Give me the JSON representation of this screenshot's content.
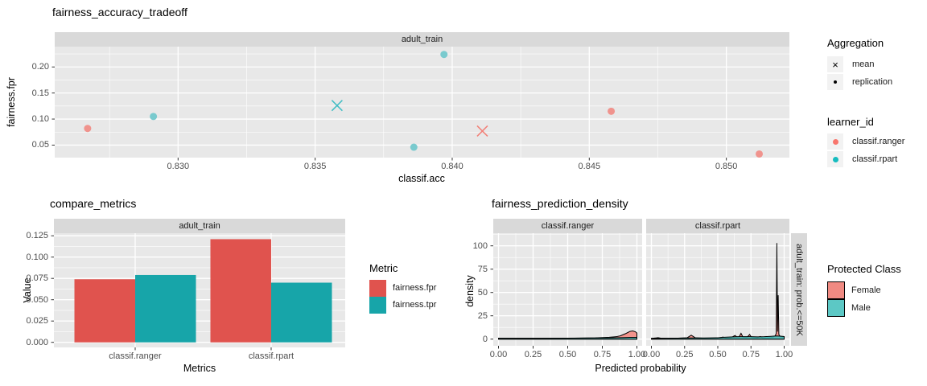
{
  "theme": {
    "panel_bg": "#E8E8E8",
    "strip_bg": "#D9D9D9",
    "grid_color": "#FFFFFF",
    "tick_text_color": "#4D4D4D",
    "text_color": "#000000"
  },
  "chart_data": [
    {
      "id": "fairness_accuracy_tradeoff",
      "type": "scatter",
      "title": "fairness_accuracy_tradeoff",
      "facet_label": "adult_train",
      "xlabel": "classif.acc",
      "ylabel": "fairness.fpr",
      "xlim": [
        0.8255,
        0.8523
      ],
      "ylim": [
        0.026,
        0.239
      ],
      "xticks": [
        {
          "v": 0.83,
          "label": "0.830"
        },
        {
          "v": 0.835,
          "label": "0.835"
        },
        {
          "v": 0.84,
          "label": "0.840"
        },
        {
          "v": 0.845,
          "label": "0.845"
        },
        {
          "v": 0.85,
          "label": "0.850"
        }
      ],
      "yticks": [
        {
          "v": 0.05,
          "label": "0.05"
        },
        {
          "v": 0.1,
          "label": "0.10"
        },
        {
          "v": 0.15,
          "label": "0.15"
        },
        {
          "v": 0.2,
          "label": "0.20"
        }
      ],
      "xminor": [
        0.8275,
        0.8325,
        0.8375,
        0.8425,
        0.8475
      ],
      "yminor": [
        0.075,
        0.125,
        0.175,
        0.225
      ],
      "series": [
        {
          "learner_id": "classif.ranger",
          "aggregation": "replication",
          "marker": "circle",
          "color": "#F0938D",
          "points": [
            [
              0.8267,
              0.082
            ],
            [
              0.8458,
              0.115
            ],
            [
              0.8512,
              0.033
            ]
          ]
        },
        {
          "learner_id": "classif.ranger",
          "aggregation": "mean",
          "marker": "x",
          "color": "#F28077",
          "points": [
            [
              0.8411,
              0.077
            ]
          ]
        },
        {
          "learner_id": "classif.rpart",
          "aggregation": "replication",
          "marker": "circle",
          "color": "#79CACE",
          "points": [
            [
              0.8291,
              0.105
            ],
            [
              0.8386,
              0.046
            ],
            [
              0.8397,
              0.224
            ]
          ]
        },
        {
          "learner_id": "classif.rpart",
          "aggregation": "mean",
          "marker": "x",
          "color": "#3FBDC4",
          "points": [
            [
              0.8358,
              0.126
            ]
          ]
        }
      ],
      "legends": [
        {
          "title": "Aggregation",
          "items": [
            {
              "label": "mean",
              "marker": "x"
            },
            {
              "label": "replication",
              "marker": "point"
            }
          ]
        },
        {
          "title": "learner_id",
          "items": [
            {
              "label": "classif.ranger",
              "color": "#F8766D"
            },
            {
              "label": "classif.rpart",
              "color": "#16BCBF"
            }
          ]
        }
      ]
    },
    {
      "id": "compare_metrics",
      "type": "bar",
      "title": "compare_metrics",
      "facet_label": "adult_train",
      "xlabel": "Metrics",
      "ylabel": "Value",
      "categories": [
        "classif.ranger",
        "classif.rpart"
      ],
      "ylim": [
        0,
        0.128
      ],
      "yticks": [
        {
          "v": 0.0,
          "label": "0.000"
        },
        {
          "v": 0.025,
          "label": "0.025"
        },
        {
          "v": 0.05,
          "label": "0.050"
        },
        {
          "v": 0.075,
          "label": "0.075"
        },
        {
          "v": 0.1,
          "label": "0.100"
        },
        {
          "v": 0.125,
          "label": "0.125"
        }
      ],
      "yminor": [
        0.0125,
        0.0375,
        0.0625,
        0.0875,
        0.1125
      ],
      "series": [
        {
          "name": "fairness.fpr",
          "color": "#E0534E",
          "values": [
            0.074,
            0.121
          ]
        },
        {
          "name": "fairness.tpr",
          "color": "#17A5A9",
          "values": [
            0.079,
            0.07
          ]
        }
      ],
      "legend": {
        "title": "Metric"
      }
    },
    {
      "id": "fairness_prediction_density",
      "type": "area",
      "title": "fairness_prediction_density",
      "xlabel": "Predicted probability",
      "ylabel": "density",
      "right_strip": "adult_train: prob.<=50K",
      "ylim": [
        0,
        113
      ],
      "xticks": [
        {
          "v": 0.0,
          "label": "0.00"
        },
        {
          "v": 0.25,
          "label": "0.25"
        },
        {
          "v": 0.5,
          "label": "0.50"
        },
        {
          "v": 0.75,
          "label": "0.75"
        },
        {
          "v": 1.0,
          "label": "1.00"
        }
      ],
      "yticks": [
        {
          "v": 0,
          "label": "0"
        },
        {
          "v": 25,
          "label": "25"
        },
        {
          "v": 50,
          "label": "50"
        },
        {
          "v": 75,
          "label": "75"
        },
        {
          "v": 100,
          "label": "100"
        }
      ],
      "xminor": [
        0.125,
        0.375,
        0.625,
        0.875
      ],
      "yminor": [
        12.5,
        37.5,
        62.5,
        87.5,
        112.5
      ],
      "facets": [
        {
          "label": "classif.ranger",
          "series": [
            {
              "name": "Female",
              "fill": "rgba(244,125,116,0.80)",
              "points": [
                [
                  0,
                  0.8
                ],
                [
                  0.4,
                  0.8
                ],
                [
                  0.55,
                  1.0
                ],
                [
                  0.7,
                  1.4
                ],
                [
                  0.8,
                  2.0
                ],
                [
                  0.85,
                  2.6
                ],
                [
                  0.88,
                  3.5
                ],
                [
                  0.92,
                  6.0
                ],
                [
                  0.95,
                  8.3
                ],
                [
                  0.97,
                  8.8
                ],
                [
                  0.99,
                  7.8
                ],
                [
                  1,
                  6.5
                ]
              ]
            },
            {
              "name": "Male",
              "fill": "rgba(63,196,192,0.85)",
              "points": [
                [
                  0,
                  0.9
                ],
                [
                  0.3,
                  0.9
                ],
                [
                  0.5,
                  1.0
                ],
                [
                  0.7,
                  1.2
                ],
                [
                  0.8,
                  1.4
                ],
                [
                  0.9,
                  1.7
                ],
                [
                  0.95,
                  1.9
                ],
                [
                  1,
                  1.9
                ]
              ]
            }
          ]
        },
        {
          "label": "classif.rpart",
          "series": [
            {
              "name": "Female",
              "fill": "rgba(244,125,116,0.80)",
              "points": [
                [
                  0,
                  0.7
                ],
                [
                  0.03,
                  1.2
                ],
                [
                  0.05,
                  1.6
                ],
                [
                  0.07,
                  1.0
                ],
                [
                  0.12,
                  0.8
                ],
                [
                  0.2,
                  1.0
                ],
                [
                  0.27,
                  1.5
                ],
                [
                  0.3,
                  4.2
                ],
                [
                  0.33,
                  1.5
                ],
                [
                  0.4,
                  0.9
                ],
                [
                  0.5,
                  1.2
                ],
                [
                  0.54,
                  2.2
                ],
                [
                  0.56,
                  1.3
                ],
                [
                  0.6,
                  1.5
                ],
                [
                  0.63,
                  4.0
                ],
                [
                  0.645,
                  2.0
                ],
                [
                  0.66,
                  2.2
                ],
                [
                  0.675,
                  6.2
                ],
                [
                  0.69,
                  2.0
                ],
                [
                  0.72,
                  1.8
                ],
                [
                  0.74,
                  5.0
                ],
                [
                  0.755,
                  1.8
                ],
                [
                  0.8,
                  1.6
                ],
                [
                  0.82,
                  2.8
                ],
                [
                  0.835,
                  1.5
                ],
                [
                  0.88,
                  1.5
                ],
                [
                  0.915,
                  2.0
                ],
                [
                  0.93,
                  3.0
                ],
                [
                  0.94,
                  6.0
                ],
                [
                  0.945,
                  103
                ],
                [
                  0.95,
                  8.0
                ],
                [
                  0.955,
                  47
                ],
                [
                  0.96,
                  5.0
                ],
                [
                  0.97,
                  2.5
                ],
                [
                  1,
                  1.8
                ]
              ]
            },
            {
              "name": "Male",
              "fill": "rgba(63,196,192,0.85)",
              "points": [
                [
                  0,
                  0.8
                ],
                [
                  0.1,
                  0.9
                ],
                [
                  0.2,
                  1.0
                ],
                [
                  0.3,
                  1.3
                ],
                [
                  0.4,
                  1.2
                ],
                [
                  0.5,
                  1.5
                ],
                [
                  0.55,
                  2.0
                ],
                [
                  0.6,
                  2.3
                ],
                [
                  0.65,
                  2.6
                ],
                [
                  0.7,
                  2.6
                ],
                [
                  0.75,
                  2.7
                ],
                [
                  0.8,
                  2.4
                ],
                [
                  0.85,
                  2.6
                ],
                [
                  0.9,
                  3.0
                ],
                [
                  0.94,
                  3.4
                ],
                [
                  0.97,
                  3.2
                ],
                [
                  1,
                  2.8
                ]
              ]
            }
          ]
        }
      ],
      "legend": {
        "title": "Protected Class",
        "items": [
          {
            "label": "Female",
            "color": "#F08A82"
          },
          {
            "label": "Male",
            "color": "#5CC8C5"
          }
        ]
      }
    }
  ]
}
